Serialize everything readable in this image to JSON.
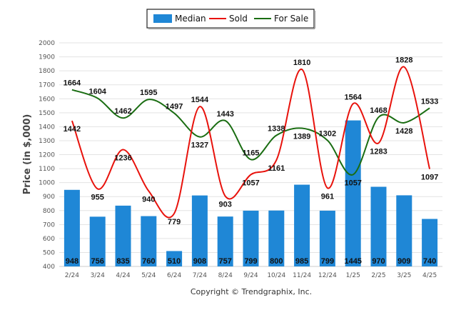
{
  "chart_data": {
    "type": "bar",
    "categories": [
      "2/24",
      "3/24",
      "4/24",
      "5/24",
      "6/24",
      "7/24",
      "8/24",
      "9/24",
      "10/24",
      "11/24",
      "12/24",
      "1/25",
      "2/25",
      "3/25",
      "4/25"
    ],
    "ylabel": "Price (in $,000)",
    "ylim": [
      400,
      2000
    ],
    "yticks": [
      400,
      500,
      600,
      700,
      800,
      900,
      1000,
      1100,
      1200,
      1300,
      1400,
      1500,
      1600,
      1700,
      1800,
      1900,
      2000
    ],
    "grid": true,
    "legend_position": "top-center",
    "series": [
      {
        "name": "Median",
        "type": "bar",
        "color": "#1f87d6",
        "values": [
          948,
          756,
          835,
          760,
          510,
          908,
          757,
          799,
          800,
          985,
          799,
          1445,
          970,
          909,
          740
        ]
      },
      {
        "name": "Sold",
        "type": "line",
        "color": "#e8120c",
        "values": [
          1442,
          955,
          1236,
          940,
          779,
          1544,
          903,
          1057,
          1161,
          1810,
          961,
          1564,
          1283,
          1828,
          1097
        ]
      },
      {
        "name": "For Sale",
        "type": "line",
        "color": "#1a6d12",
        "values": [
          1664,
          1604,
          1462,
          1595,
          1497,
          1327,
          1443,
          1165,
          1338,
          1389,
          1302,
          1057,
          1468,
          1428,
          1533
        ]
      }
    ]
  },
  "footer": {
    "copyright": "Copyright © Trendgraphix, Inc."
  }
}
